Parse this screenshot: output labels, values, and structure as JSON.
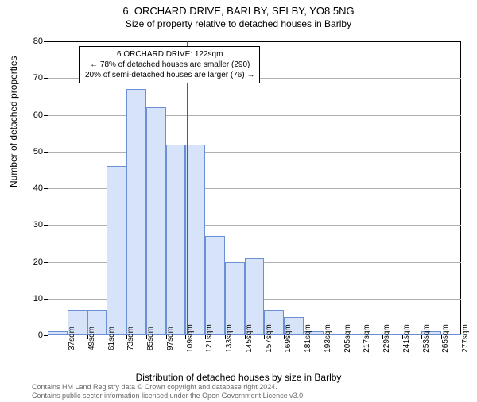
{
  "title": "6, ORCHARD DRIVE, BARLBY, SELBY, YO8 5NG",
  "subtitle": "Size of property relative to detached houses in Barlby",
  "ylabel": "Number of detached properties",
  "xlabel": "Distribution of detached houses by size in Barlby",
  "footnote1": "Contains HM Land Registry data © Crown copyright and database right 2024.",
  "footnote2": "Contains public sector information licensed under the Open Government Licence v3.0.",
  "chart": {
    "type": "histogram",
    "ylim": [
      0,
      80
    ],
    "ytick_step": 10,
    "bar_fill": "#d7e3f8",
    "bar_stroke": "#6b8fd4",
    "grid_color": "#b0b0b0",
    "ref_line_color": "#d62728",
    "ref_value": 122,
    "x_labels": [
      "37sqm",
      "49sqm",
      "61sqm",
      "73sqm",
      "85sqm",
      "97sqm",
      "109sqm",
      "121sqm",
      "133sqm",
      "145sqm",
      "157sqm",
      "169sqm",
      "181sqm",
      "193sqm",
      "205sqm",
      "217sqm",
      "229sqm",
      "241sqm",
      "253sqm",
      "265sqm",
      "277sqm"
    ],
    "values": [
      1,
      7,
      7,
      46,
      67,
      62,
      52,
      52,
      27,
      20,
      21,
      7,
      5,
      1,
      0,
      0,
      0,
      0,
      0,
      1,
      0
    ],
    "x_start": 37,
    "x_end": 289,
    "bin_width": 12
  },
  "annotation": {
    "line1": "6 ORCHARD DRIVE: 122sqm",
    "line2": "← 78% of detached houses are smaller (290)",
    "line3": "20% of semi-detached houses are larger (76) →"
  }
}
